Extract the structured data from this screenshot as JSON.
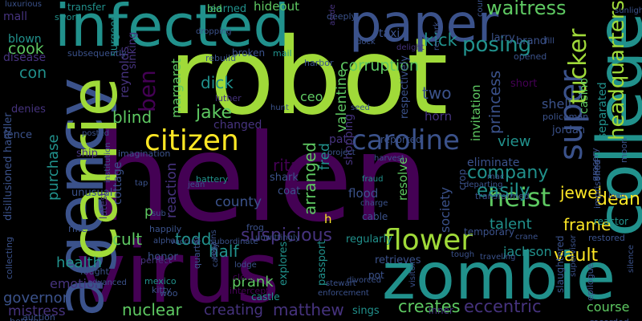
{
  "colors": {
    "background": "#000000",
    "palette": [
      "#440154",
      "#3b528b",
      "#21918c",
      "#5ec962",
      "#fde725",
      "#a0da39",
      "#2a788e",
      "#46337e"
    ]
  },
  "words": [
    "robot",
    "helen",
    "virus",
    "zombie",
    "infected",
    "agency",
    "carrie",
    "college",
    "paper",
    "citizen",
    "caroline",
    "flower",
    "heist",
    "super",
    "tucker",
    "headquarters",
    "ben",
    "corruption",
    "posing",
    "waitress",
    "kick",
    "blind",
    "dick",
    "jake",
    "rita",
    "arranged",
    "suspicious",
    "cult",
    "todd",
    "half",
    "prank",
    "creates",
    "eccentric",
    "course",
    "nuclear",
    "matthew",
    "creating",
    "governor",
    "mistress",
    "emotion",
    "health",
    "purchase",
    "cook",
    "con",
    "disease",
    "blown",
    "hideout",
    "learned",
    "bid",
    "transfer",
    "mall",
    "sword",
    "luxurious",
    "two",
    "ceo",
    "valentine",
    "princess",
    "invitation",
    "view",
    "company",
    "easily",
    "resolve",
    "society",
    "talent",
    "frame",
    "dean",
    "jewel",
    "vault",
    "separated",
    "casino",
    "shell",
    "short",
    "jordan",
    "larry",
    "brand",
    "taxi",
    "changed",
    "county",
    "coat",
    "reaction",
    "margaret",
    "honor",
    "surgeon",
    "reynolds",
    "sinking",
    "rebuild",
    "broken",
    "mail",
    "shark",
    "flood",
    "fraud",
    "horn",
    "pat",
    "fred",
    "shopping",
    "h",
    "p",
    "regularly",
    "retrieves",
    "passport",
    "explores",
    "castle",
    "clerk",
    "intercept",
    "sings",
    "inner",
    "lodge",
    "mexico",
    "kitty",
    "fought",
    "advanced",
    "perfect",
    "rifle",
    "unusual",
    "latest",
    "cottage",
    "happily",
    "imagination",
    "posted",
    "ship",
    "handler",
    "fence",
    "denies",
    "disillusioned",
    "collecting",
    "betrays",
    "auction",
    "subsequently",
    "dropping",
    "deeply",
    "aside",
    "dock",
    "delight",
    "remark",
    "countryside",
    "fill",
    "sunlight",
    "opened",
    "harbor",
    "luther",
    "hunt",
    "seed",
    "reported",
    "policeman",
    "respectively",
    "eliminate",
    "mac",
    "cable",
    "temporary",
    "crane",
    "jackson",
    "tough",
    "traveling",
    "supervisor",
    "slaughtered",
    "epilogue",
    "silence",
    "recorded",
    "restored",
    "reactor",
    "moon",
    "loan",
    "imprisoned",
    "grocery",
    "transformed",
    "departing",
    "crop",
    "harvest",
    "project",
    "charge",
    "frog",
    "unwittingly",
    "subordinate",
    "alpha",
    "vaccine",
    "tap",
    "sub",
    "battery",
    "institution",
    "jean",
    "woo",
    "stewart",
    "pot",
    "divorced",
    "enforcement",
    "visitor",
    "quarter",
    "regains",
    "candy",
    "sens"
  ]
}
